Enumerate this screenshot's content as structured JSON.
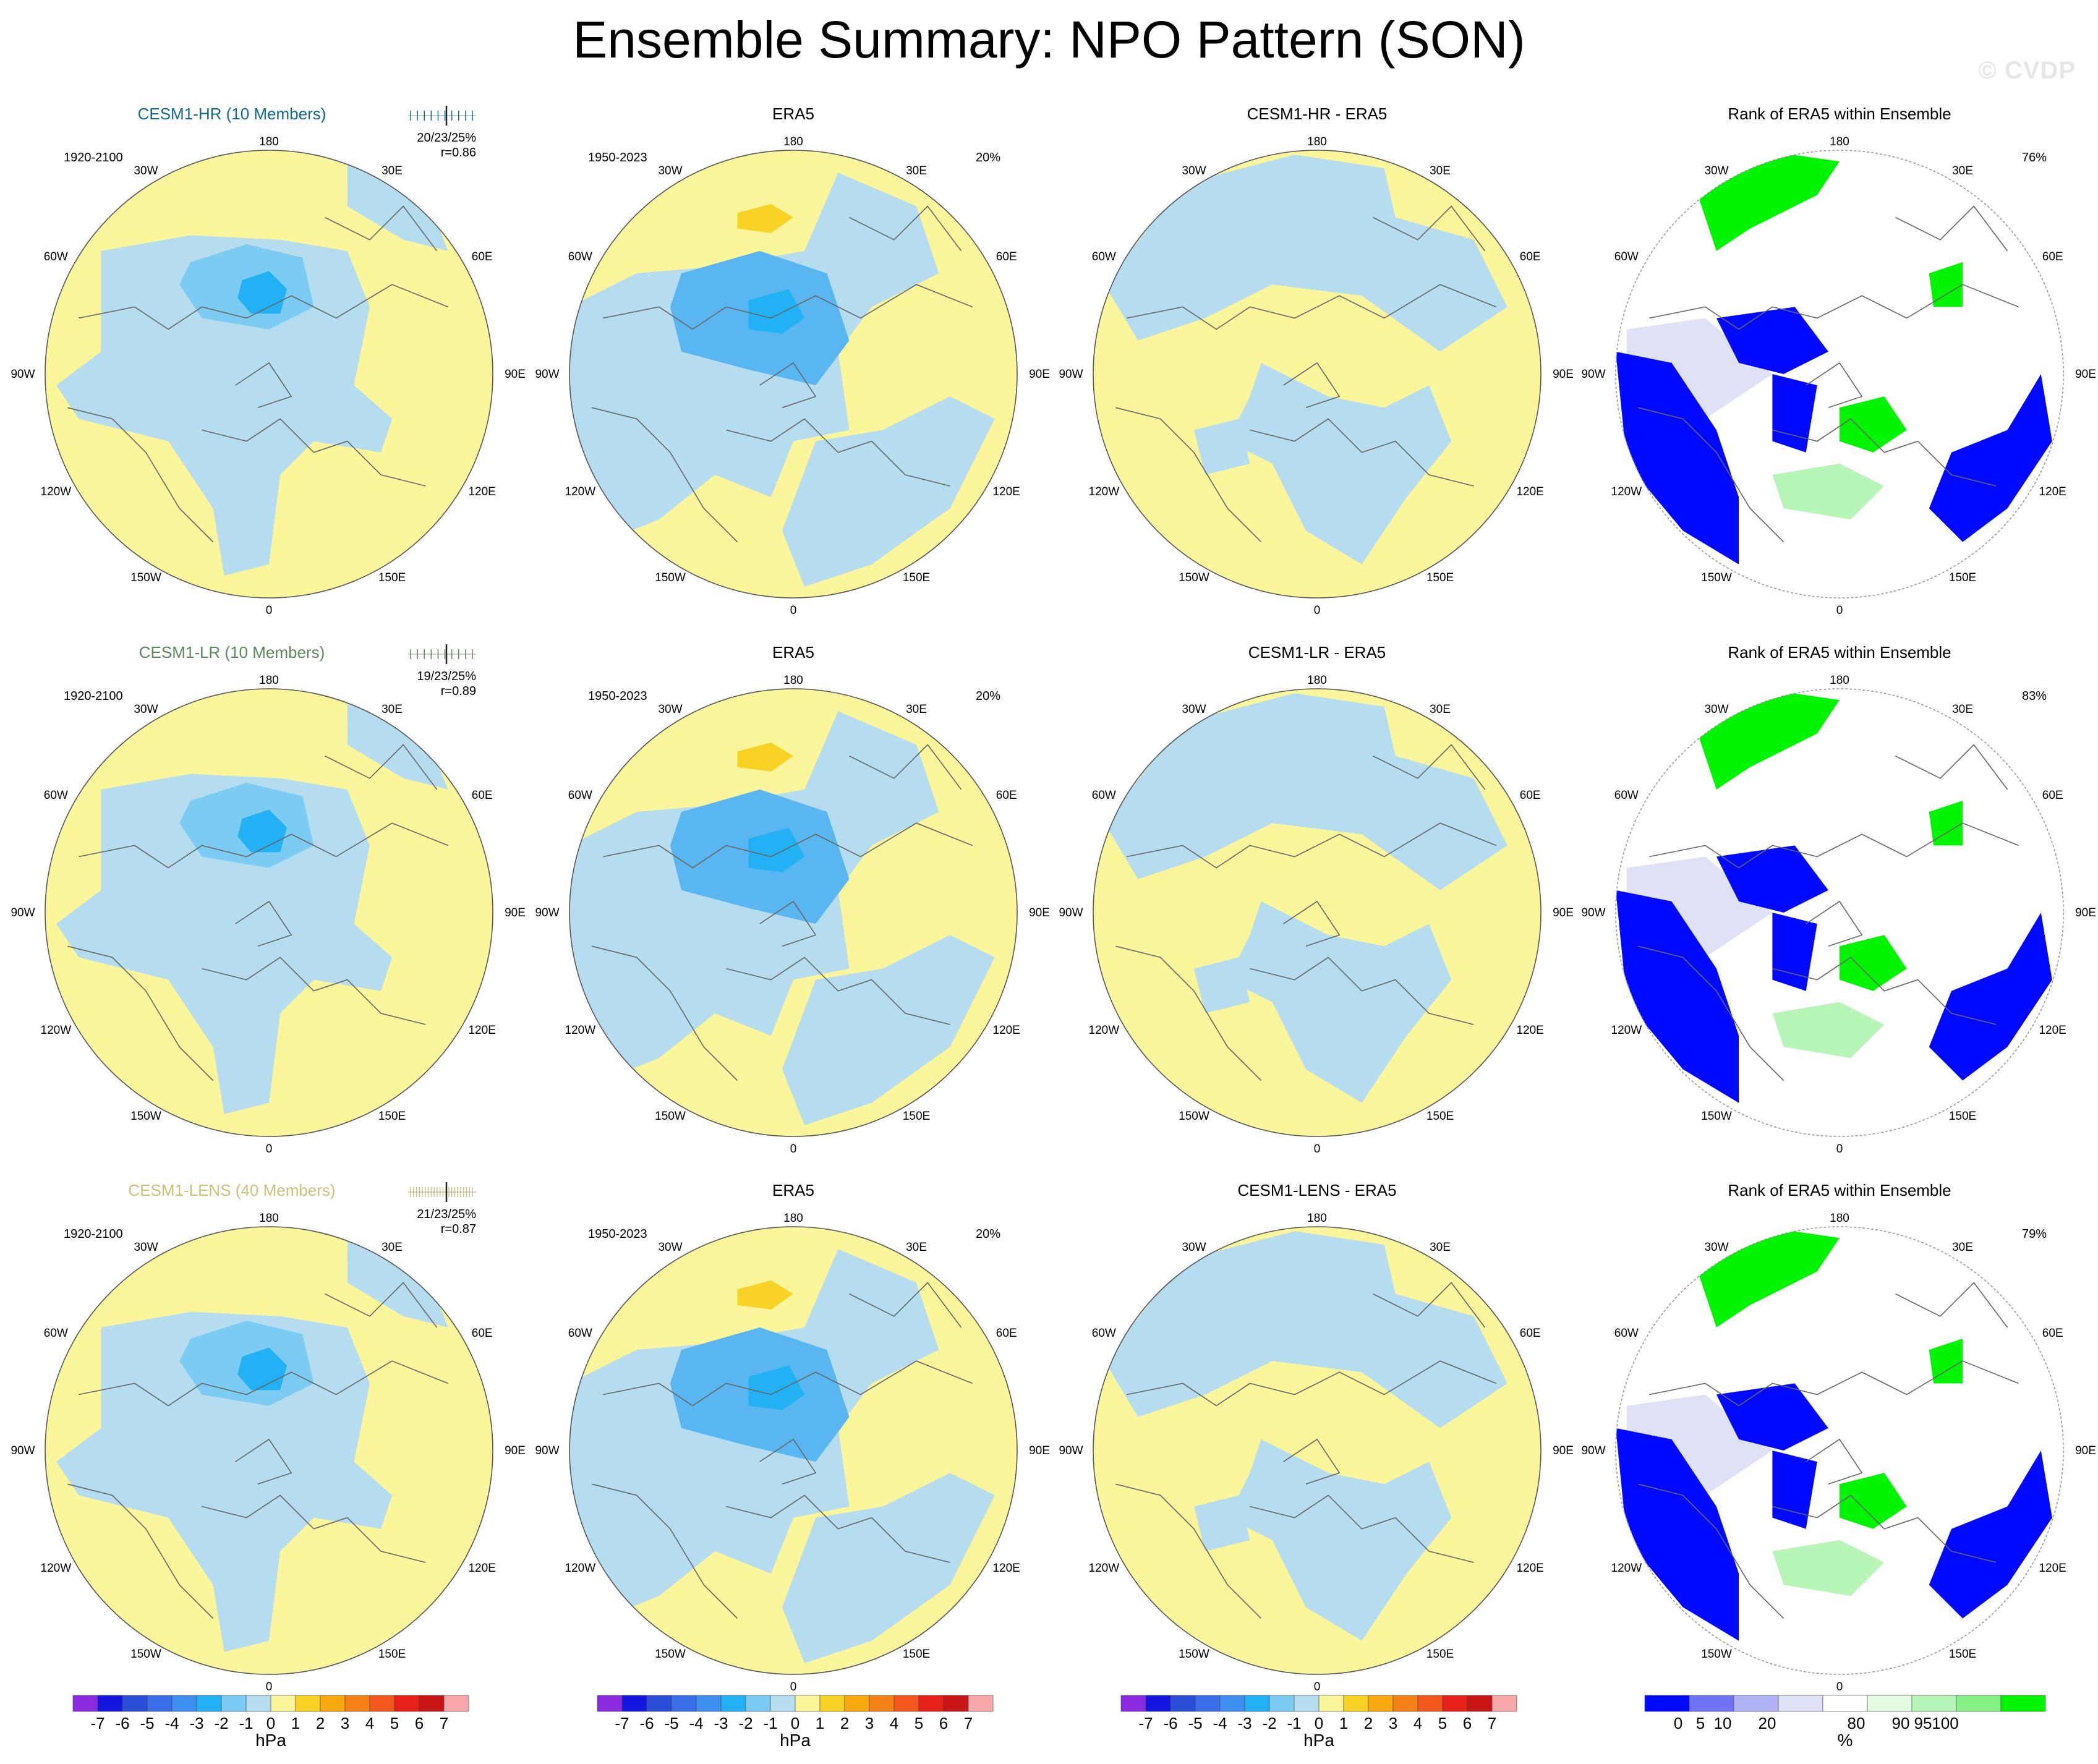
{
  "page": {
    "title": "Ensemble Summary: NPO Pattern (SON)",
    "watermark": "© CVDP"
  },
  "longitude_labels": {
    "top": "180",
    "bottom": "0",
    "left": [
      "150W",
      "120W",
      "90W",
      "60W",
      "30W"
    ],
    "right": [
      "150E",
      "120E",
      "90E",
      "60E",
      "30E"
    ]
  },
  "rows": [
    {
      "model_title": "CESM1-HR (10 Members)",
      "model_color": "#0f6a8a",
      "model_period": "1920-2100",
      "rank_text": "20/23/25%",
      "corr_text": "r=0.86",
      "era5_title": "ERA5",
      "era5_period": "1950-2023",
      "era5_pct": "20%",
      "diff_title": "CESM1-HR - ERA5",
      "rank_title": "Rank of ERA5 within Ensemble",
      "rank_pct": "76%"
    },
    {
      "model_title": "CESM1-LR (10 Members)",
      "model_color": "#5a8a5a",
      "model_period": "1920-2100",
      "rank_text": "19/23/25%",
      "corr_text": "r=0.89",
      "era5_title": "ERA5",
      "era5_period": "1950-2023",
      "era5_pct": "20%",
      "diff_title": "CESM1-LR - ERA5",
      "rank_title": "Rank of ERA5 within Ensemble",
      "rank_pct": "83%"
    },
    {
      "model_title": "CESM1-LENS (40 Members)",
      "model_color": "#cbc27a",
      "model_period": "1920-2100",
      "rank_text": "21/23/25%",
      "corr_text": "r=0.87",
      "era5_title": "ERA5",
      "era5_period": "1950-2023",
      "era5_pct": "20%",
      "diff_title": "CESM1-LENS - ERA5",
      "rank_title": "Rank of ERA5 within Ensemble",
      "rank_pct": "79%"
    }
  ],
  "colorbars": {
    "hpa": {
      "unit": "hPa",
      "labels": [
        "-7",
        "-6",
        "-5",
        "-4",
        "-3",
        "-2",
        "-1",
        "0",
        "1",
        "2",
        "3",
        "4",
        "5",
        "6",
        "7"
      ],
      "colors": [
        "#8a2be2",
        "#1515e0",
        "#2b4ed8",
        "#3a6ee8",
        "#3f8ff0",
        "#22b1f4",
        "#7ccbf2",
        "#b5dcef",
        "#fbf59b",
        "#f8d224",
        "#f8a90e",
        "#f68217",
        "#f4571b",
        "#e8201a",
        "#c81515",
        "#f7a9a9"
      ]
    },
    "rank": {
      "unit": "%",
      "labels": [
        "0",
        "5",
        "10",
        "20",
        "80",
        "90",
        "95",
        "100"
      ],
      "colors": [
        "#0008ff",
        "#6e74f4",
        "#b0b4f4",
        "#dfe1f6",
        "#ffffff",
        "#e2fbe2",
        "#b8f5b8",
        "#86f186",
        "#00f400"
      ]
    }
  },
  "palette": {
    "neg1": "#b5dcef",
    "neg2": "#7ccbf2",
    "neg3": "#5ab6f0",
    "neg4": "#22b1f4",
    "pos1": "#fbf59b",
    "pos2": "#f8d224",
    "rank_blue": "#0008ff",
    "rank_lightblue": "#dfe1f6",
    "rank_green": "#00f400",
    "rank_lightgreen": "#b8f5b8",
    "coast": "#666666"
  }
}
